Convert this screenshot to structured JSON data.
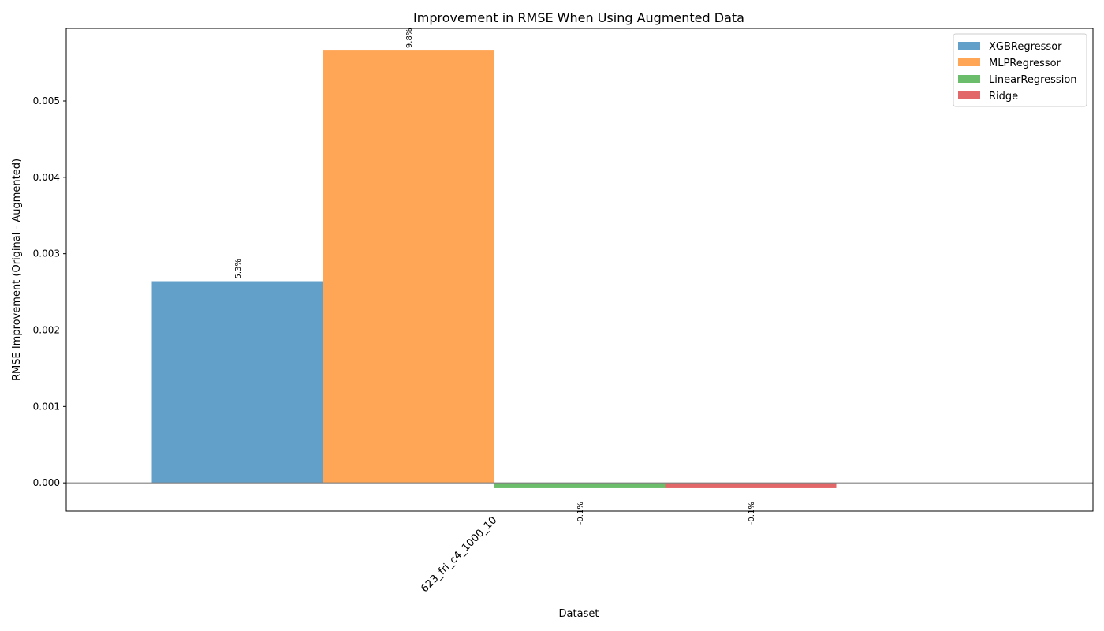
{
  "chart_data": {
    "type": "bar",
    "title": "Improvement in RMSE When Using Augmented Data",
    "xlabel": "Dataset",
    "ylabel": "RMSE Improvement (Original - Augmented)",
    "categories": [
      "623_fri_c4_1000_10"
    ],
    "ylim": [
      -0.00037,
      0.00595
    ],
    "yticks": [
      0.0,
      0.001,
      0.002,
      0.003,
      0.004,
      0.005
    ],
    "ytick_labels": [
      "0.000",
      "0.001",
      "0.002",
      "0.003",
      "0.004",
      "0.005"
    ],
    "grid": false,
    "legend_position": "top-right",
    "series": [
      {
        "name": "XGBRegressor",
        "values": [
          0.00264
        ],
        "labels": [
          "5.3%"
        ],
        "color": "#1f77b4"
      },
      {
        "name": "MLPRegressor",
        "values": [
          0.00566
        ],
        "labels": [
          "9.8%"
        ],
        "color": "#ff7f0e"
      },
      {
        "name": "LinearRegression",
        "values": [
          -7e-05
        ],
        "labels": [
          "-0.1%"
        ],
        "color": "#2ca02c"
      },
      {
        "name": "Ridge",
        "values": [
          -7e-05
        ],
        "labels": [
          "-0.1%"
        ],
        "color": "#d62728"
      }
    ]
  }
}
